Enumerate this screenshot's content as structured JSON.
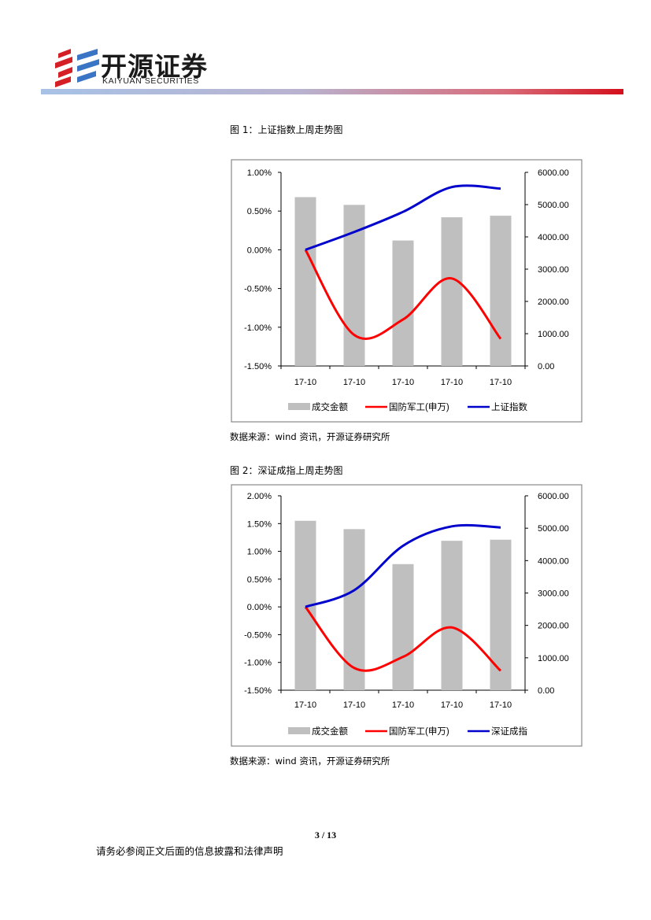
{
  "header": {
    "logo_cn": "开源证券",
    "logo_en": "KAIYUAN SECURITIES"
  },
  "figures": [
    {
      "title": "图 1：上证指数上周走势图",
      "source": "数据来源：wind 资讯，开源证券研究所"
    },
    {
      "title": "图 2：深证成指上周走势图",
      "source": "数据来源：wind 资讯，开源证券研究所"
    }
  ],
  "chart_data": [
    {
      "type": "bar",
      "categories": [
        "17-10",
        "17-10",
        "17-10",
        "17-10",
        "17-10"
      ],
      "y_left": {
        "ticks": [
          "1.00%",
          "0.50%",
          "0.00%",
          "-0.50%",
          "-1.00%",
          "-1.50%"
        ],
        "range": [
          -1.5,
          1.0
        ]
      },
      "y_right": {
        "ticks": [
          "6000.00",
          "5000.00",
          "4000.00",
          "3000.00",
          "2000.00",
          "1000.00",
          "0.00"
        ],
        "range": [
          0,
          6000
        ]
      },
      "series": [
        {
          "name": "成交金额",
          "type": "bar",
          "axis": "left",
          "values": [
            0.68,
            0.58,
            0.12,
            0.42,
            0.44
          ],
          "color": "#bfbfbf"
        },
        {
          "name": "国防军工(申万)",
          "type": "line",
          "axis": "left",
          "values": [
            0.0,
            -1.1,
            -0.9,
            -0.37,
            -1.15
          ],
          "color": "#ff0000"
        },
        {
          "name": "上证指数",
          "type": "line",
          "axis": "left",
          "values": [
            0.0,
            0.23,
            0.49,
            0.81,
            0.79
          ],
          "color": "#0000cc"
        }
      ],
      "legend_position": "bottom",
      "grid": false
    },
    {
      "type": "bar",
      "categories": [
        "17-10",
        "17-10",
        "17-10",
        "17-10",
        "17-10"
      ],
      "y_left": {
        "ticks": [
          "2.00%",
          "1.50%",
          "1.00%",
          "0.50%",
          "0.00%",
          "-0.50%",
          "-1.00%",
          "-1.50%"
        ],
        "range": [
          -1.5,
          2.0
        ]
      },
      "y_right": {
        "ticks": [
          "6000.00",
          "5000.00",
          "4000.00",
          "3000.00",
          "2000.00",
          "1000.00",
          "0.00"
        ],
        "range": [
          0,
          6000
        ]
      },
      "series": [
        {
          "name": "成交金额",
          "type": "bar",
          "axis": "left",
          "values": [
            1.55,
            1.4,
            0.77,
            1.19,
            1.21
          ],
          "color": "#bfbfbf"
        },
        {
          "name": "国防军工(申万)",
          "type": "line",
          "axis": "left",
          "values": [
            0.0,
            -1.1,
            -0.9,
            -0.37,
            -1.15
          ],
          "color": "#ff0000"
        },
        {
          "name": "深证成指",
          "type": "line",
          "axis": "left",
          "values": [
            0.0,
            0.3,
            1.1,
            1.45,
            1.43
          ],
          "color": "#0000cc"
        }
      ],
      "legend_position": "bottom",
      "grid": false
    }
  ],
  "footer": {
    "page": "3 / 13",
    "disclaimer": "请务必参阅正文后面的信息披露和法律声明"
  }
}
